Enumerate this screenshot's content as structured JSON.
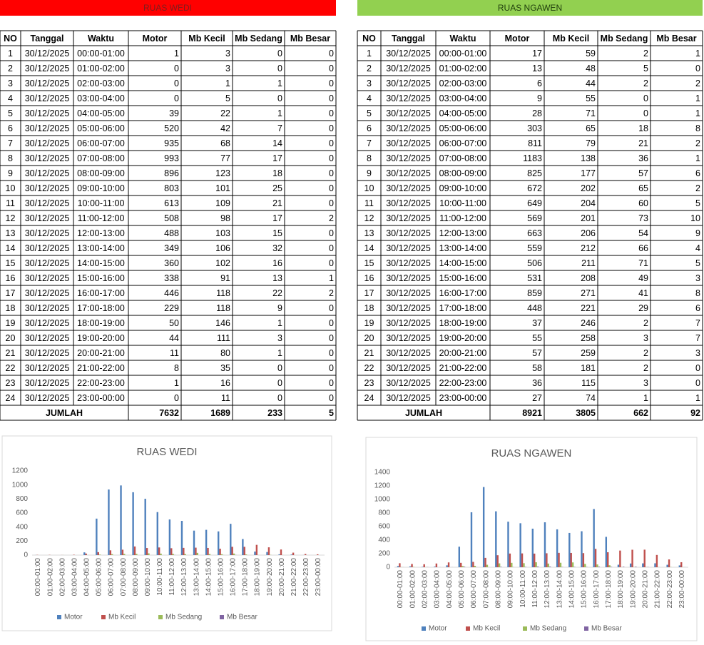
{
  "tables": [
    {
      "title": "RUAS WEDI",
      "headers": [
        "NO",
        "Tanggal",
        "Waktu",
        "Motor",
        "Mb Kecil",
        "Mb Sedang",
        "Mb Besar"
      ],
      "rows": [
        [
          1,
          "30/12/2025",
          "00:00-01:00",
          1,
          3,
          0,
          0
        ],
        [
          2,
          "30/12/2025",
          "01:00-02:00",
          0,
          3,
          0,
          0
        ],
        [
          3,
          "30/12/2025",
          "02:00-03:00",
          0,
          1,
          1,
          0
        ],
        [
          4,
          "30/12/2025",
          "03:00-04:00",
          0,
          5,
          0,
          0
        ],
        [
          5,
          "30/12/2025",
          "04:00-05:00",
          39,
          22,
          1,
          0
        ],
        [
          6,
          "30/12/2025",
          "05:00-06:00",
          520,
          42,
          7,
          0
        ],
        [
          7,
          "30/12/2025",
          "06:00-07:00",
          935,
          68,
          14,
          0
        ],
        [
          8,
          "30/12/2025",
          "07:00-08:00",
          993,
          77,
          17,
          0
        ],
        [
          9,
          "30/12/2025",
          "08:00-09:00",
          896,
          123,
          18,
          0
        ],
        [
          10,
          "30/12/2025",
          "09:00-10:00",
          803,
          101,
          25,
          0
        ],
        [
          11,
          "30/12/2025",
          "10:00-11:00",
          613,
          109,
          21,
          0
        ],
        [
          12,
          "30/12/2025",
          "11:00-12:00",
          508,
          98,
          17,
          2
        ],
        [
          13,
          "30/12/2025",
          "12:00-13:00",
          488,
          103,
          15,
          0
        ],
        [
          14,
          "30/12/2025",
          "13:00-14:00",
          349,
          106,
          32,
          0
        ],
        [
          15,
          "30/12/2025",
          "14:00-15:00",
          360,
          102,
          16,
          0
        ],
        [
          16,
          "30/12/2025",
          "15:00-16:00",
          338,
          91,
          13,
          1
        ],
        [
          17,
          "30/12/2025",
          "16:00-17:00",
          446,
          118,
          22,
          2
        ],
        [
          18,
          "30/12/2025",
          "17:00-18:00",
          229,
          118,
          9,
          0
        ],
        [
          19,
          "30/12/2025",
          "18:00-19:00",
          50,
          146,
          1,
          0
        ],
        [
          20,
          "30/12/2025",
          "19:00-20:00",
          44,
          111,
          3,
          0
        ],
        [
          21,
          "30/12/2025",
          "20:00-21:00",
          11,
          80,
          1,
          0
        ],
        [
          22,
          "30/12/2025",
          "21:00-22:00",
          8,
          35,
          0,
          0
        ],
        [
          23,
          "30/12/2025",
          "22:00-23:00",
          1,
          16,
          0,
          0
        ],
        [
          24,
          "30/12/2025",
          "23:00-00:00",
          0,
          11,
          0,
          0
        ]
      ],
      "total_label": "JUMLAH",
      "totals": [
        7632,
        1689,
        233,
        5
      ]
    },
    {
      "title": "RUAS NGAWEN",
      "headers": [
        "NO",
        "Tanggal",
        "Waktu",
        "Motor",
        "Mb Kecil",
        "Mb Sedang",
        "Mb Besar"
      ],
      "rows": [
        [
          1,
          "30/12/2025",
          "00:00-01:00",
          17,
          59,
          2,
          1
        ],
        [
          2,
          "30/12/2025",
          "01:00-02:00",
          13,
          48,
          5,
          0
        ],
        [
          3,
          "30/12/2025",
          "02:00-03:00",
          6,
          44,
          2,
          2
        ],
        [
          4,
          "30/12/2025",
          "03:00-04:00",
          9,
          55,
          0,
          1
        ],
        [
          5,
          "30/12/2025",
          "04:00-05:00",
          28,
          71,
          0,
          1
        ],
        [
          6,
          "30/12/2025",
          "05:00-06:00",
          303,
          65,
          18,
          8
        ],
        [
          7,
          "30/12/2025",
          "06:00-07:00",
          811,
          79,
          21,
          2
        ],
        [
          8,
          "30/12/2025",
          "07:00-08:00",
          1183,
          138,
          36,
          1
        ],
        [
          9,
          "30/12/2025",
          "08:00-09:00",
          825,
          177,
          57,
          6
        ],
        [
          10,
          "30/12/2025",
          "09:00-10:00",
          672,
          202,
          65,
          2
        ],
        [
          11,
          "30/12/2025",
          "10:00-11:00",
          649,
          204,
          60,
          5
        ],
        [
          12,
          "30/12/2025",
          "11:00-12:00",
          569,
          201,
          73,
          10
        ],
        [
          13,
          "30/12/2025",
          "12:00-13:00",
          663,
          206,
          54,
          9
        ],
        [
          14,
          "30/12/2025",
          "13:00-14:00",
          559,
          212,
          66,
          4
        ],
        [
          15,
          "30/12/2025",
          "14:00-15:00",
          506,
          211,
          71,
          5
        ],
        [
          16,
          "30/12/2025",
          "15:00-16:00",
          531,
          208,
          49,
          3
        ],
        [
          17,
          "30/12/2025",
          "16:00-17:00",
          859,
          271,
          41,
          8
        ],
        [
          18,
          "30/12/2025",
          "17:00-18:00",
          448,
          221,
          29,
          6
        ],
        [
          19,
          "30/12/2025",
          "18:00-19:00",
          37,
          246,
          2,
          7
        ],
        [
          20,
          "30/12/2025",
          "19:00-20:00",
          55,
          258,
          3,
          7
        ],
        [
          21,
          "30/12/2025",
          "20:00-21:00",
          57,
          259,
          2,
          3
        ],
        [
          22,
          "30/12/2025",
          "21:00-22:00",
          58,
          181,
          2,
          0
        ],
        [
          23,
          "30/12/2025",
          "22:00-23:00",
          36,
          115,
          3,
          0
        ],
        [
          24,
          "30/12/2025",
          "23:00-00:00",
          27,
          74,
          1,
          1
        ]
      ],
      "total_label": "JUMLAH",
      "totals": [
        8921,
        3805,
        662,
        92
      ]
    }
  ],
  "chart_data": [
    {
      "type": "bar",
      "title": "RUAS WEDI",
      "categories": [
        "00:00-01:00",
        "01:00-02:00",
        "02:00-03:00",
        "03:00-04:00",
        "04:00-05:00",
        "05:00-06:00",
        "06:00-07:00",
        "07:00-08:00",
        "08:00-09:00",
        "09:00-10:00",
        "10:00-11:00",
        "11:00-12:00",
        "12:00-13:00",
        "13:00-14:00",
        "14:00-15:00",
        "15:00-16:00",
        "16:00-17:00",
        "17:00-18:00",
        "18:00-19:00",
        "19:00-20:00",
        "20:00-21:00",
        "21:00-22:00",
        "22:00-23:00",
        "23:00-00:00"
      ],
      "series": [
        {
          "name": "Motor",
          "color": "#4f81bd",
          "values": [
            1,
            0,
            0,
            0,
            39,
            520,
            935,
            993,
            896,
            803,
            613,
            508,
            488,
            349,
            360,
            338,
            446,
            229,
            50,
            44,
            11,
            8,
            1,
            0
          ]
        },
        {
          "name": "Mb Kecil",
          "color": "#c0504d",
          "values": [
            3,
            3,
            1,
            5,
            22,
            42,
            68,
            77,
            123,
            101,
            109,
            98,
            103,
            106,
            102,
            91,
            118,
            118,
            146,
            111,
            80,
            35,
            16,
            11
          ]
        },
        {
          "name": "Mb Sedang",
          "color": "#9bbb59",
          "values": [
            0,
            0,
            1,
            0,
            1,
            7,
            14,
            17,
            18,
            25,
            21,
            17,
            15,
            32,
            16,
            13,
            22,
            9,
            1,
            3,
            1,
            0,
            0,
            0
          ]
        },
        {
          "name": "Mb Besar",
          "color": "#8064a2",
          "values": [
            0,
            0,
            0,
            0,
            0,
            0,
            0,
            0,
            0,
            0,
            0,
            2,
            0,
            0,
            0,
            1,
            2,
            0,
            0,
            0,
            0,
            0,
            0,
            0
          ]
        }
      ],
      "ylim": [
        0,
        1200
      ],
      "yticks": [
        0,
        200,
        400,
        600,
        800,
        1000,
        1200
      ],
      "grid": false,
      "legend": "bottom"
    },
    {
      "type": "bar",
      "title": "RUAS NGAWEN",
      "categories": [
        "00:00-01:00",
        "01:00-02:00",
        "02:00-03:00",
        "03:00-04:00",
        "04:00-05:00",
        "05:00-06:00",
        "06:00-07:00",
        "07:00-08:00",
        "08:00-09:00",
        "09:00-10:00",
        "10:00-11:00",
        "11:00-12:00",
        "12:00-13:00",
        "13:00-14:00",
        "14:00-15:00",
        "15:00-16:00",
        "16:00-17:00",
        "17:00-18:00",
        "18:00-19:00",
        "19:00-20:00",
        "20:00-21:00",
        "21:00-22:00",
        "22:00-23:00",
        "23:00-00:00"
      ],
      "series": [
        {
          "name": "Motor",
          "color": "#4f81bd",
          "values": [
            17,
            13,
            6,
            9,
            28,
            303,
            811,
            1183,
            825,
            672,
            649,
            569,
            663,
            559,
            506,
            531,
            859,
            448,
            37,
            55,
            57,
            58,
            36,
            27
          ]
        },
        {
          "name": "Mb Kecil",
          "color": "#c0504d",
          "values": [
            59,
            48,
            44,
            55,
            71,
            65,
            79,
            138,
            177,
            202,
            204,
            201,
            206,
            212,
            211,
            208,
            271,
            221,
            246,
            258,
            259,
            181,
            115,
            74
          ]
        },
        {
          "name": "Mb Sedang",
          "color": "#9bbb59",
          "values": [
            2,
            5,
            2,
            0,
            0,
            18,
            21,
            36,
            57,
            65,
            60,
            73,
            54,
            66,
            71,
            49,
            41,
            29,
            2,
            3,
            2,
            2,
            3,
            1
          ]
        },
        {
          "name": "Mb Besar",
          "color": "#8064a2",
          "values": [
            1,
            0,
            2,
            1,
            1,
            8,
            2,
            1,
            6,
            2,
            5,
            10,
            9,
            4,
            5,
            3,
            8,
            6,
            7,
            7,
            3,
            0,
            0,
            1
          ]
        }
      ],
      "ylim": [
        0,
        1400
      ],
      "yticks": [
        0,
        200,
        400,
        600,
        800,
        1000,
        1200,
        1400
      ],
      "grid": false,
      "legend": "bottom"
    }
  ]
}
